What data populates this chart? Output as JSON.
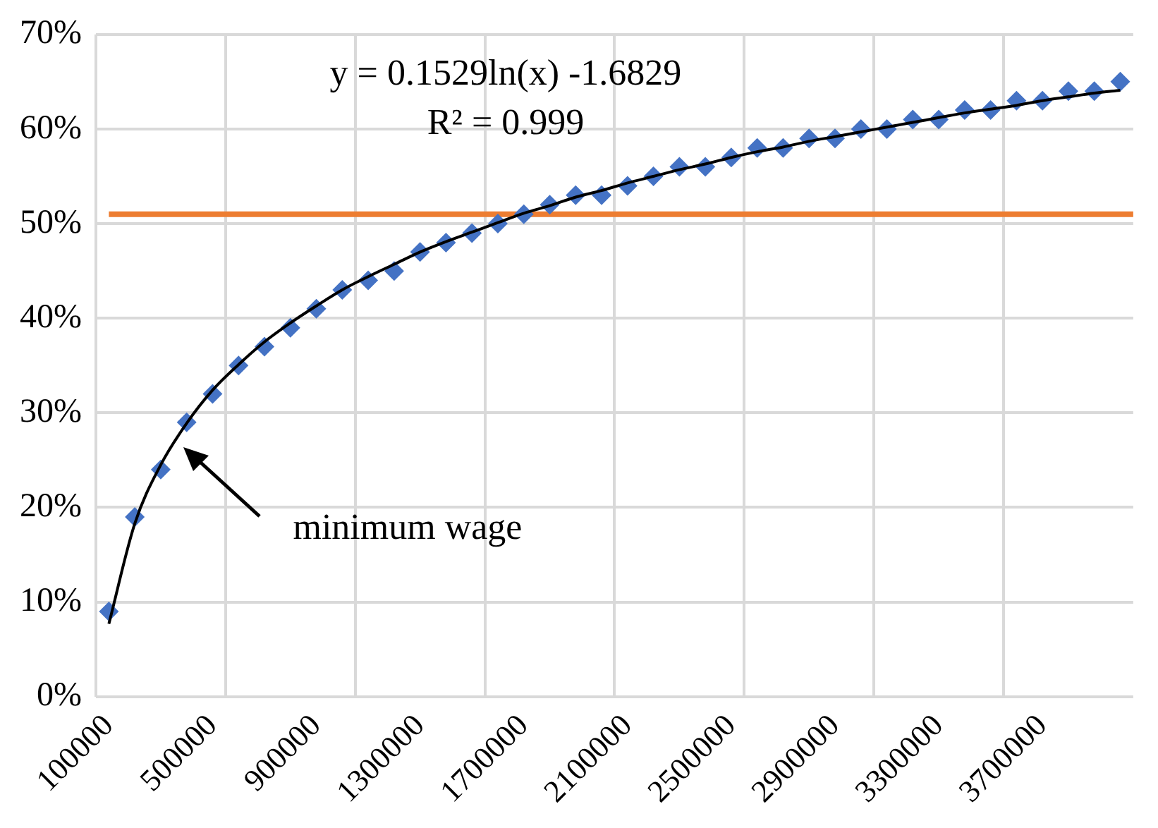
{
  "chart_data": {
    "type": "scatter",
    "categories": [
      "100000",
      null,
      null,
      null,
      "500000",
      null,
      null,
      null,
      "900000",
      null,
      null,
      null,
      "1300000",
      null,
      null,
      null,
      "1700000",
      null,
      null,
      null,
      "2100000",
      null,
      null,
      null,
      "2500000",
      null,
      null,
      null,
      "2900000",
      null,
      null,
      null,
      "3300000",
      null,
      null,
      null,
      "3700000",
      null,
      null,
      null
    ],
    "series": [
      {
        "color": "#4472c4",
        "marker": "diamond",
        "values": [
          9,
          19,
          24,
          29,
          32,
          35,
          37,
          39,
          41,
          43,
          44,
          45,
          47,
          48,
          49,
          50,
          51,
          52,
          53,
          53,
          54,
          55,
          56,
          56,
          57,
          58,
          58,
          59,
          59,
          60,
          60,
          61,
          61,
          62,
          62,
          63,
          63,
          64,
          64,
          65
        ]
      },
      {
        "type": "line",
        "color": "#000000",
        "marker": "none",
        "values": [
          7.7,
          18.3,
          24.5,
          28.9,
          32.4,
          35.1,
          37.5,
          39.5,
          41.3,
          43.0,
          44.4,
          45.7,
          47.0,
          48.1,
          49.1,
          50.1,
          51.1,
          51.9,
          52.8,
          53.5,
          54.3,
          55.0,
          55.7,
          56.3,
          57.0,
          57.6,
          58.1,
          58.7,
          59.2,
          59.7,
          60.2,
          60.7,
          61.2,
          61.7,
          62.1,
          62.5,
          63.0,
          63.4,
          63.8,
          64.1
        ]
      }
    ],
    "ylim": [
      0,
      70
    ],
    "yticks": [
      {
        "value": 0,
        "label": "0%"
      },
      {
        "value": 10,
        "label": "10%"
      },
      {
        "value": 20,
        "label": "20%"
      },
      {
        "value": 30,
        "label": "30%"
      },
      {
        "value": 40,
        "label": "40%"
      },
      {
        "value": 50,
        "label": "50%"
      },
      {
        "value": 60,
        "label": "60%"
      },
      {
        "value": 70,
        "label": "70%"
      }
    ],
    "grid": true,
    "ref_lines": [
      {
        "axis": "y",
        "value": 51,
        "color": "#ed7d31"
      }
    ],
    "annotations": [
      "y = 0.1529ln(x) -1.6829",
      "R² = 0.999",
      "minimum wage"
    ]
  }
}
